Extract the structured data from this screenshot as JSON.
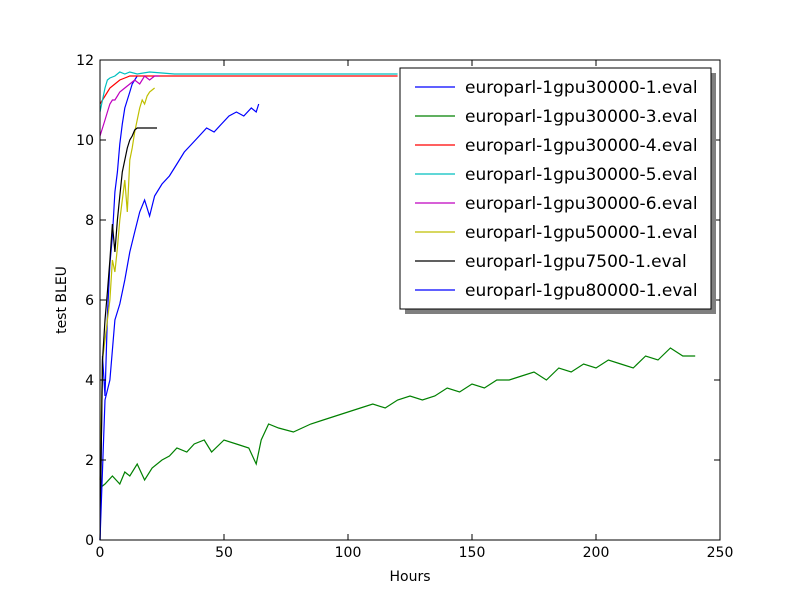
{
  "chart_data": {
    "type": "line",
    "xlabel": "Hours",
    "ylabel": "test BLEU",
    "xlim": [
      0,
      250
    ],
    "ylim": [
      0,
      12
    ],
    "xticks": [
      "0",
      "50",
      "100",
      "150",
      "200",
      "250"
    ],
    "yticks": [
      "0",
      "2",
      "4",
      "6",
      "8",
      "10",
      "12"
    ],
    "grid": false,
    "legend_position": "top-right",
    "series": [
      {
        "name": "europarl-1gpu30000-1.eval",
        "color": "#0000ff",
        "x": [
          0,
          1,
          2,
          3,
          4,
          5,
          6,
          7,
          8,
          9,
          10,
          11,
          12,
          13,
          14,
          15
        ],
        "y": [
          0,
          4.6,
          3.6,
          5.6,
          6.9,
          7.6,
          8.7,
          9.2,
          9.9,
          10.4,
          10.8,
          11.0,
          11.2,
          11.4,
          11.5,
          11.6
        ]
      },
      {
        "name": "europarl-1gpu30000-3.eval",
        "color": "#008000",
        "x": [
          0,
          2,
          5,
          8,
          10,
          12,
          15,
          18,
          21,
          25,
          28,
          31,
          35,
          38,
          42,
          45,
          50,
          55,
          60,
          63,
          65,
          68,
          72,
          78,
          85,
          90,
          95,
          100,
          105,
          110,
          115,
          120,
          125,
          130,
          135,
          140,
          145,
          150,
          155,
          160,
          165,
          170,
          175,
          180,
          185,
          190,
          195,
          200,
          205,
          210,
          215,
          220,
          225,
          230,
          235,
          240
        ],
        "y": [
          1.3,
          1.4,
          1.6,
          1.4,
          1.7,
          1.6,
          1.9,
          1.5,
          1.8,
          2.0,
          2.1,
          2.3,
          2.2,
          2.4,
          2.5,
          2.2,
          2.5,
          2.4,
          2.3,
          1.9,
          2.5,
          2.9,
          2.8,
          2.7,
          2.9,
          3.0,
          3.1,
          3.2,
          3.3,
          3.4,
          3.3,
          3.5,
          3.6,
          3.5,
          3.6,
          3.8,
          3.7,
          3.9,
          3.8,
          4.0,
          4.0,
          4.1,
          4.2,
          4.0,
          4.3,
          4.2,
          4.4,
          4.3,
          4.5,
          4.4,
          4.3,
          4.6,
          4.5,
          4.8,
          4.6,
          4.6
        ]
      },
      {
        "name": "europarl-1gpu30000-4.eval",
        "color": "#ff0000",
        "x": [
          0,
          2,
          4,
          6,
          8,
          10,
          12,
          15,
          20,
          30,
          50,
          80,
          120
        ],
        "y": [
          10.9,
          11.1,
          11.3,
          11.4,
          11.5,
          11.55,
          11.6,
          11.6,
          11.6,
          11.6,
          11.6,
          11.6,
          11.6
        ]
      },
      {
        "name": "europarl-1gpu30000-5.eval",
        "color": "#00bfbf",
        "x": [
          0,
          1,
          2,
          3,
          4,
          6,
          8,
          10,
          12,
          15,
          20,
          30,
          50,
          80,
          120
        ],
        "y": [
          10.7,
          11.0,
          11.3,
          11.5,
          11.55,
          11.6,
          11.7,
          11.65,
          11.7,
          11.65,
          11.7,
          11.65,
          11.65,
          11.65,
          11.65
        ]
      },
      {
        "name": "europarl-1gpu30000-6.eval",
        "color": "#bf00bf",
        "x": [
          0,
          1,
          2,
          3,
          4,
          5,
          6,
          7,
          8,
          10,
          12,
          14,
          16,
          18,
          20,
          22,
          24
        ],
        "y": [
          10.1,
          10.3,
          10.5,
          10.7,
          10.9,
          11.0,
          11.0,
          11.1,
          11.2,
          11.3,
          11.4,
          11.5,
          11.4,
          11.6,
          11.5,
          11.6,
          11.6
        ]
      },
      {
        "name": "europarl-1gpu50000-1.eval",
        "color": "#bfbf00",
        "x": [
          0,
          1,
          2,
          3,
          4,
          5,
          6,
          7,
          8,
          9,
          10,
          11,
          12,
          13,
          14,
          15,
          16,
          17,
          18,
          19,
          20,
          21,
          22
        ],
        "y": [
          1.5,
          4.5,
          5.0,
          5.5,
          6.0,
          7.0,
          6.7,
          7.3,
          8.0,
          8.5,
          9.0,
          8.2,
          9.5,
          9.8,
          10.2,
          10.5,
          10.8,
          11.0,
          10.9,
          11.1,
          11.2,
          11.25,
          11.3
        ]
      },
      {
        "name": "europarl-1gpu7500-1.eval",
        "color": "#000000",
        "x": [
          0,
          1,
          2,
          3,
          4,
          5,
          6,
          7,
          8,
          9,
          10,
          11,
          12,
          13,
          14,
          15,
          17,
          19,
          21,
          23
        ],
        "y": [
          0,
          4.5,
          5.5,
          6.2,
          7.0,
          7.9,
          7.2,
          8.0,
          8.6,
          9.2,
          9.5,
          9.8,
          10.0,
          10.1,
          10.25,
          10.3,
          10.3,
          10.3,
          10.3,
          10.3
        ]
      },
      {
        "name": "europarl-1gpu80000-1.eval",
        "color": "#0000ff",
        "x": [
          0,
          2,
          4,
          6,
          8,
          10,
          12,
          14,
          16,
          18,
          20,
          22,
          25,
          28,
          31,
          34,
          37,
          40,
          43,
          46,
          49,
          52,
          55,
          58,
          61,
          63,
          64
        ],
        "y": [
          0,
          3.5,
          4.0,
          5.5,
          5.9,
          6.5,
          7.2,
          7.7,
          8.2,
          8.5,
          8.1,
          8.6,
          8.9,
          9.1,
          9.4,
          9.7,
          9.9,
          10.1,
          10.3,
          10.2,
          10.4,
          10.6,
          10.7,
          10.6,
          10.8,
          10.7,
          10.9
        ]
      }
    ]
  }
}
